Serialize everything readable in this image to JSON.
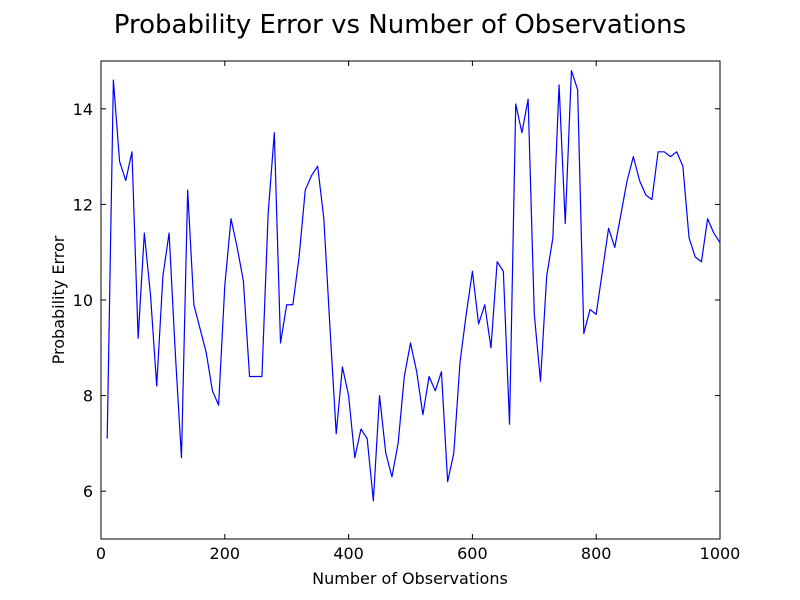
{
  "chart_data": {
    "type": "line",
    "title": "Probability Error vs Number of Observations",
    "xlabel": "Number of Observations",
    "ylabel": "Probability Error",
    "xlim": [
      0,
      1000
    ],
    "ylim": [
      5,
      15
    ],
    "xticks": [
      0,
      200,
      400,
      600,
      800,
      1000
    ],
    "yticks": [
      6,
      8,
      10,
      12,
      14
    ],
    "grid": false,
    "series": [
      {
        "color": "#0000ff",
        "x": [
          10,
          20,
          30,
          40,
          50,
          60,
          70,
          80,
          90,
          100,
          110,
          120,
          130,
          140,
          150,
          160,
          170,
          180,
          190,
          200,
          210,
          220,
          230,
          240,
          250,
          260,
          270,
          280,
          290,
          300,
          310,
          320,
          330,
          340,
          350,
          360,
          370,
          380,
          390,
          400,
          410,
          420,
          430,
          440,
          450,
          460,
          470,
          480,
          490,
          500,
          510,
          520,
          530,
          540,
          550,
          560,
          570,
          580,
          590,
          600,
          610,
          620,
          630,
          640,
          650,
          660,
          670,
          680,
          690,
          700,
          710,
          720,
          730,
          740,
          750,
          760,
          770,
          780,
          790,
          800,
          810,
          820,
          830,
          840,
          850,
          860,
          870,
          880,
          890,
          900,
          910,
          920,
          930,
          940,
          950,
          960,
          970,
          980,
          990,
          1000
        ],
        "y": [
          7.1,
          14.6,
          12.9,
          12.5,
          13.1,
          9.2,
          11.4,
          10.1,
          8.2,
          10.5,
          11.4,
          8.9,
          6.7,
          12.3,
          9.9,
          9.4,
          8.9,
          8.1,
          7.8,
          10.3,
          11.7,
          11.1,
          10.4,
          8.4,
          8.4,
          8.4,
          11.8,
          13.5,
          9.1,
          9.9,
          9.9,
          10.9,
          12.3,
          12.6,
          12.8,
          11.7,
          9.4,
          7.2,
          8.6,
          8.0,
          6.7,
          7.3,
          7.1,
          5.8,
          8.0,
          6.8,
          6.3,
          7.0,
          8.4,
          9.1,
          8.5,
          7.6,
          8.4,
          8.1,
          8.5,
          6.2,
          6.8,
          8.7,
          9.7,
          10.6,
          9.5,
          9.9,
          9.0,
          10.8,
          10.6,
          7.4,
          14.1,
          13.5,
          14.2,
          9.7,
          8.3,
          10.5,
          11.3,
          14.5,
          11.6,
          14.8,
          14.4,
          9.3,
          9.8,
          9.7,
          10.6,
          11.5,
          11.1,
          11.8,
          12.5,
          13.0,
          12.5,
          12.2,
          12.1,
          13.1,
          13.1,
          13.0,
          13.1,
          12.8,
          11.3,
          10.9,
          10.8,
          11.7,
          11.4,
          11.2
        ]
      }
    ]
  }
}
